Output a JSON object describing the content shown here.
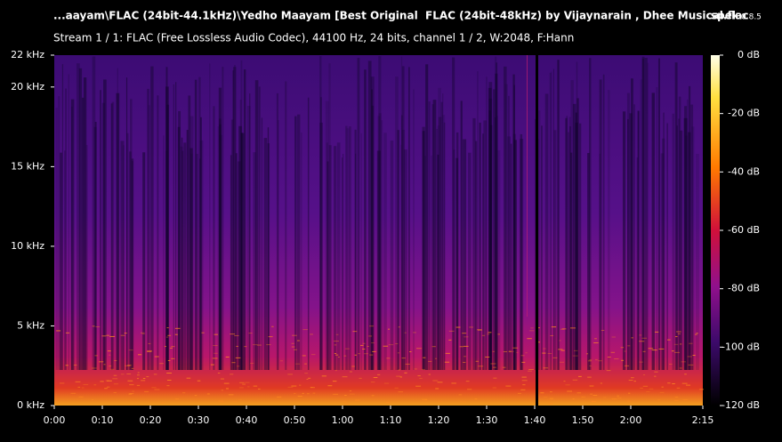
{
  "chart_data": {
    "type": "spectrogram",
    "title": "...aayam\\FLAC (24bit-44.1kHz)\\Yedho Maayam [Best Original  FLAC (24bit-48kHz) by Vijaynarain , Dhee Musical.flac",
    "app": "spek",
    "version": "0.8.5",
    "subtitle": "Stream 1 / 1: FLAC (Free Lossless Audio Codec), 44100 Hz, 24 bits, channel 1 / 2, W:2048, F:Hann",
    "xlim": [
      0,
      135
    ],
    "xticks": [
      {
        "value": 0,
        "label": "0:00"
      },
      {
        "value": 10,
        "label": "0:10"
      },
      {
        "value": 20,
        "label": "0:20"
      },
      {
        "value": 30,
        "label": "0:30"
      },
      {
        "value": 40,
        "label": "0:40"
      },
      {
        "value": 50,
        "label": "0:50"
      },
      {
        "value": 60,
        "label": "1:00"
      },
      {
        "value": 70,
        "label": "1:10"
      },
      {
        "value": 80,
        "label": "1:20"
      },
      {
        "value": 90,
        "label": "1:30"
      },
      {
        "value": 100,
        "label": "1:40"
      },
      {
        "value": 110,
        "label": "1:50"
      },
      {
        "value": 120,
        "label": "2:00"
      },
      {
        "value": 135,
        "label": "2:15"
      }
    ],
    "ylim": [
      0,
      22
    ],
    "yticks": [
      {
        "value": 0,
        "label": "0 kHz"
      },
      {
        "value": 5,
        "label": "5 kHz"
      },
      {
        "value": 10,
        "label": "10 kHz"
      },
      {
        "value": 15,
        "label": "15 kHz"
      },
      {
        "value": 20,
        "label": "20 kHz"
      },
      {
        "value": 22,
        "label": "22 kHz"
      }
    ],
    "clim": [
      -120,
      0
    ],
    "cticks": [
      {
        "value": 0,
        "label": "0 dB"
      },
      {
        "value": -20,
        "label": "-20 dB"
      },
      {
        "value": -40,
        "label": "-40 dB"
      },
      {
        "value": -60,
        "label": "-60 dB"
      },
      {
        "value": -80,
        "label": "-80 dB"
      },
      {
        "value": -100,
        "label": "-100 dB"
      },
      {
        "value": -120,
        "label": "-120 dB"
      }
    ]
  }
}
